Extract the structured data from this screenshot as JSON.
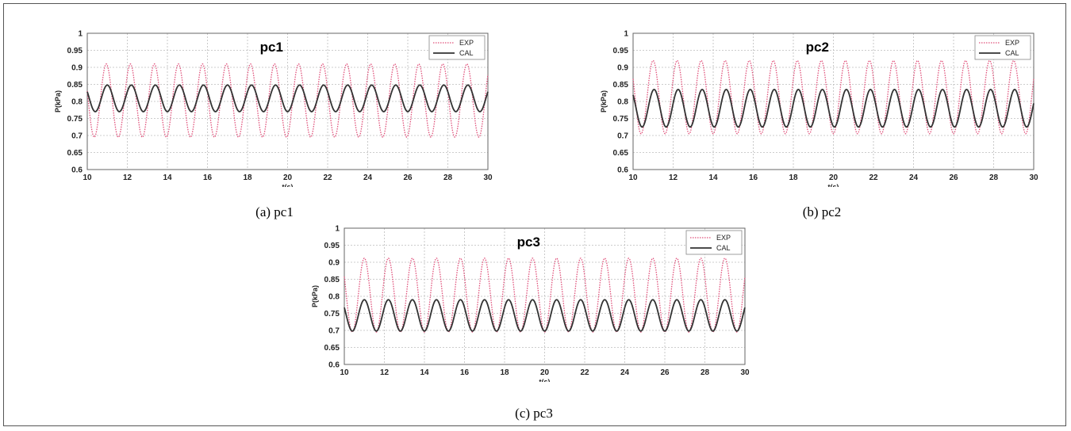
{
  "captions": [
    "(a) pc1",
    "(b) pc2",
    "(c) pc3"
  ],
  "chart_data": [
    {
      "type": "line",
      "title": "pc1",
      "xlabel": "t(s)",
      "ylabel": "P(kPa)",
      "xlim": [
        10,
        30
      ],
      "ylim": [
        0.6,
        1
      ],
      "xticks": [
        "10",
        "12",
        "14",
        "16",
        "18",
        "20",
        "22",
        "24",
        "26",
        "28",
        "30"
      ],
      "yticks": [
        "0.6",
        "0.65",
        "0.7",
        "0.75",
        "0.8",
        "0.85",
        "0.9",
        "0.95",
        "1"
      ],
      "grid": true,
      "legend": "top-right",
      "series": [
        {
          "name": "EXP",
          "style": "dotted",
          "color": "#e0507a",
          "period_s": 1.2,
          "min": 0.695,
          "max": 0.91,
          "phase_s": 10.95
        },
        {
          "name": "CAL",
          "style": "solid",
          "color": "#333333",
          "period_s": 1.2,
          "min": 0.77,
          "max": 0.848,
          "phase_s": 11.0
        }
      ]
    },
    {
      "type": "line",
      "title": "pc2",
      "xlabel": "t(s)",
      "ylabel": "P(kPa)",
      "xlim": [
        10,
        30
      ],
      "ylim": [
        0.6,
        1
      ],
      "xticks": [
        "10",
        "12",
        "14",
        "16",
        "18",
        "20",
        "22",
        "24",
        "26",
        "28",
        "30"
      ],
      "yticks": [
        "0.6",
        "0.65",
        "0.7",
        "0.75",
        "0.8",
        "0.85",
        "0.9",
        "0.95",
        "1"
      ],
      "grid": true,
      "legend": "top-right",
      "series": [
        {
          "name": "EXP",
          "style": "dotted",
          "color": "#e0507a",
          "period_s": 1.2,
          "min": 0.705,
          "max": 0.92,
          "phase_s": 11.0
        },
        {
          "name": "CAL",
          "style": "solid",
          "color": "#333333",
          "period_s": 1.2,
          "min": 0.725,
          "max": 0.835,
          "phase_s": 11.05
        }
      ]
    },
    {
      "type": "line",
      "title": "pc3",
      "xlabel": "t(s)",
      "ylabel": "P(kPa)",
      "xlim": [
        10,
        30
      ],
      "ylim": [
        0.6,
        1
      ],
      "xticks": [
        "10",
        "12",
        "14",
        "16",
        "18",
        "20",
        "22",
        "24",
        "26",
        "28",
        "30"
      ],
      "yticks": [
        "0.6",
        "0.65",
        "0.7",
        "0.75",
        "0.8",
        "0.85",
        "0.9",
        "0.95",
        "1"
      ],
      "grid": true,
      "legend": "top-right",
      "series": [
        {
          "name": "EXP",
          "style": "dotted",
          "color": "#e0507a",
          "period_s": 1.2,
          "min": 0.695,
          "max": 0.912,
          "phase_s": 11.0
        },
        {
          "name": "CAL",
          "style": "solid",
          "color": "#333333",
          "period_s": 1.2,
          "min": 0.698,
          "max": 0.79,
          "phase_s": 11.0
        }
      ]
    }
  ]
}
